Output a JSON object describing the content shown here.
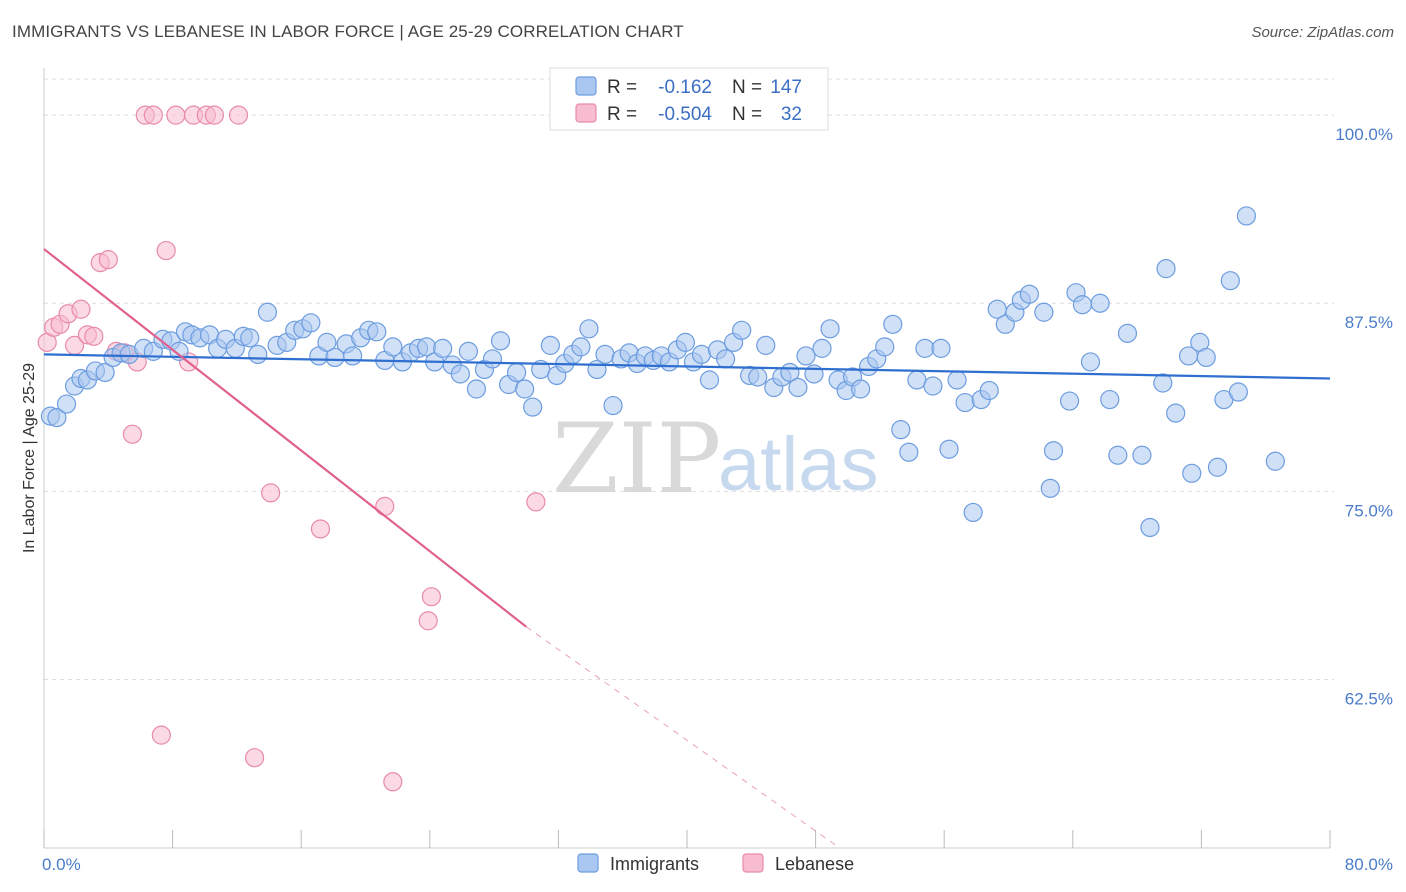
{
  "chart_data": {
    "type": "scatter",
    "title": "IMMIGRANTS VS LEBANESE IN LABOR FORCE | AGE 25-29 CORRELATION CHART",
    "source": "Source: ZipAtlas.com",
    "ylabel": "In Labor Force | Age 25-29",
    "xlabel": "",
    "xlim": [
      0,
      80
    ],
    "ylim": [
      51.3,
      102.8
    ],
    "x_tick_labels": [
      {
        "value": 0,
        "label": "0.0%"
      },
      {
        "value": 80,
        "label": "80.0%"
      }
    ],
    "y_tick_labels": [
      {
        "value": 100,
        "label": "100.0%"
      },
      {
        "value": 87.5,
        "label": "87.5%"
      },
      {
        "value": 75,
        "label": "75.0%"
      },
      {
        "value": 62.5,
        "label": "62.5%"
      }
    ],
    "grid": true,
    "legend_position": "top-center",
    "legend": [
      {
        "name": "Immigrants",
        "r_label": "R =",
        "r_value": "-0.162",
        "n_label": "N =",
        "n_value": "147"
      },
      {
        "name": "Lebanese",
        "r_label": "R =",
        "r_value": "-0.504",
        "n_label": "N =",
        "n_value": "32"
      }
    ],
    "watermark": {
      "part1": "ZIP",
      "part2": "atlas"
    },
    "colors": {
      "immigrants_fill": "#a9c7f0",
      "immigrants_stroke": "#6d9de0",
      "immigrants_line": "#2f6fcf",
      "lebanese_fill": "#f7bcd0",
      "lebanese_stroke": "#e88aaa",
      "lebanese_line": "#e0608f",
      "grid": "#dddddd",
      "axis": "#cccccc"
    },
    "series": [
      {
        "name": "Immigrants",
        "trend": {
          "x0": 0,
          "y0": 84.1,
          "x1": 80,
          "y1": 82.5
        },
        "points": [
          [
            0.4,
            80.0
          ],
          [
            0.8,
            79.9
          ],
          [
            1.4,
            80.8
          ],
          [
            1.9,
            82.0
          ],
          [
            2.3,
            82.5
          ],
          [
            2.7,
            82.4
          ],
          [
            3.2,
            83.0
          ],
          [
            3.8,
            82.9
          ],
          [
            4.3,
            83.9
          ],
          [
            4.8,
            84.2
          ],
          [
            5.3,
            84.1
          ],
          [
            6.2,
            84.5
          ],
          [
            6.8,
            84.3
          ],
          [
            7.4,
            85.1
          ],
          [
            7.9,
            85.0
          ],
          [
            8.4,
            84.3
          ],
          [
            8.8,
            85.6
          ],
          [
            9.2,
            85.4
          ],
          [
            9.7,
            85.2
          ],
          [
            10.3,
            85.4
          ],
          [
            10.8,
            84.5
          ],
          [
            11.3,
            85.1
          ],
          [
            11.9,
            84.5
          ],
          [
            12.4,
            85.3
          ],
          [
            12.8,
            85.2
          ],
          [
            13.3,
            84.1
          ],
          [
            13.9,
            86.9
          ],
          [
            14.5,
            84.7
          ],
          [
            15.1,
            84.9
          ],
          [
            15.6,
            85.7
          ],
          [
            16.1,
            85.8
          ],
          [
            16.6,
            86.2
          ],
          [
            17.1,
            84.0
          ],
          [
            17.6,
            84.9
          ],
          [
            18.1,
            83.9
          ],
          [
            18.8,
            84.8
          ],
          [
            19.2,
            84.0
          ],
          [
            19.7,
            85.2
          ],
          [
            20.2,
            85.7
          ],
          [
            20.7,
            85.6
          ],
          [
            21.2,
            83.7
          ],
          [
            21.7,
            84.6
          ],
          [
            22.3,
            83.6
          ],
          [
            22.8,
            84.2
          ],
          [
            23.3,
            84.5
          ],
          [
            23.8,
            84.6
          ],
          [
            24.3,
            83.6
          ],
          [
            24.8,
            84.5
          ],
          [
            25.4,
            83.4
          ],
          [
            25.9,
            82.8
          ],
          [
            26.4,
            84.3
          ],
          [
            26.9,
            81.8
          ],
          [
            27.4,
            83.1
          ],
          [
            27.9,
            83.8
          ],
          [
            28.4,
            85.0
          ],
          [
            28.9,
            82.1
          ],
          [
            29.4,
            82.9
          ],
          [
            29.9,
            81.8
          ],
          [
            30.4,
            80.6
          ],
          [
            30.9,
            83.1
          ],
          [
            31.5,
            84.7
          ],
          [
            31.9,
            82.7
          ],
          [
            32.4,
            83.5
          ],
          [
            32.9,
            84.1
          ],
          [
            33.4,
            84.6
          ],
          [
            33.9,
            85.8
          ],
          [
            34.4,
            83.1
          ],
          [
            34.9,
            84.1
          ],
          [
            35.4,
            80.7
          ],
          [
            35.9,
            83.8
          ],
          [
            36.4,
            84.2
          ],
          [
            36.9,
            83.5
          ],
          [
            37.4,
            84.0
          ],
          [
            37.9,
            83.7
          ],
          [
            38.4,
            84.0
          ],
          [
            38.9,
            83.6
          ],
          [
            39.4,
            84.4
          ],
          [
            39.9,
            84.9
          ],
          [
            40.4,
            83.6
          ],
          [
            40.9,
            84.1
          ],
          [
            41.4,
            82.4
          ],
          [
            41.9,
            84.4
          ],
          [
            42.4,
            83.8
          ],
          [
            42.9,
            84.9
          ],
          [
            43.4,
            85.7
          ],
          [
            43.9,
            82.7
          ],
          [
            44.4,
            82.6
          ],
          [
            44.9,
            84.7
          ],
          [
            45.4,
            81.9
          ],
          [
            45.9,
            82.6
          ],
          [
            46.4,
            82.9
          ],
          [
            46.9,
            81.9
          ],
          [
            47.4,
            84.0
          ],
          [
            47.9,
            82.8
          ],
          [
            48.4,
            84.5
          ],
          [
            48.9,
            85.8
          ],
          [
            49.4,
            82.4
          ],
          [
            49.9,
            81.7
          ],
          [
            50.3,
            82.6
          ],
          [
            50.8,
            81.8
          ],
          [
            51.3,
            83.3
          ],
          [
            51.8,
            83.8
          ],
          [
            52.3,
            84.6
          ],
          [
            52.8,
            86.1
          ],
          [
            53.3,
            79.1
          ],
          [
            53.8,
            77.6
          ],
          [
            54.3,
            82.4
          ],
          [
            54.8,
            84.5
          ],
          [
            55.3,
            82.0
          ],
          [
            55.8,
            84.5
          ],
          [
            56.3,
            77.8
          ],
          [
            56.8,
            82.4
          ],
          [
            57.3,
            80.9
          ],
          [
            57.8,
            73.6
          ],
          [
            58.3,
            81.1
          ],
          [
            58.8,
            81.7
          ],
          [
            59.3,
            87.1
          ],
          [
            59.8,
            86.1
          ],
          [
            60.4,
            86.9
          ],
          [
            60.8,
            87.7
          ],
          [
            61.3,
            88.1
          ],
          [
            62.2,
            86.9
          ],
          [
            62.8,
            77.7
          ],
          [
            62.6,
            75.2
          ],
          [
            63.8,
            81.0
          ],
          [
            64.2,
            88.2
          ],
          [
            64.6,
            87.4
          ],
          [
            65.1,
            83.6
          ],
          [
            65.7,
            87.5
          ],
          [
            66.3,
            81.1
          ],
          [
            66.8,
            77.4
          ],
          [
            67.4,
            85.5
          ],
          [
            68.3,
            77.4
          ],
          [
            68.8,
            72.6
          ],
          [
            69.6,
            82.2
          ],
          [
            69.8,
            89.8
          ],
          [
            70.4,
            80.2
          ],
          [
            71.2,
            84.0
          ],
          [
            71.4,
            76.2
          ],
          [
            71.9,
            84.9
          ],
          [
            72.3,
            83.9
          ],
          [
            73.0,
            76.6
          ],
          [
            73.4,
            81.1
          ],
          [
            73.8,
            89.0
          ],
          [
            74.3,
            81.6
          ],
          [
            74.8,
            93.3
          ],
          [
            76.6,
            77.0
          ]
        ]
      },
      {
        "name": "Lebanese",
        "trend": {
          "x0": 0,
          "y0": 91.1,
          "x1": 30.0,
          "y1": 66.0,
          "dash_x1": 49.5,
          "dash_y1": 51.3
        },
        "points": [
          [
            0.2,
            84.9
          ],
          [
            0.6,
            85.9
          ],
          [
            1.0,
            86.1
          ],
          [
            1.5,
            86.8
          ],
          [
            1.9,
            84.7
          ],
          [
            2.3,
            87.1
          ],
          [
            2.7,
            85.4
          ],
          [
            3.1,
            85.3
          ],
          [
            3.5,
            90.2
          ],
          [
            4.0,
            90.4
          ],
          [
            4.5,
            84.3
          ],
          [
            5.0,
            84.2
          ],
          [
            5.5,
            78.8
          ],
          [
            5.8,
            83.6
          ],
          [
            6.3,
            100.0
          ],
          [
            6.8,
            100.0
          ],
          [
            7.3,
            58.8
          ],
          [
            7.6,
            91.0
          ],
          [
            8.2,
            100.0
          ],
          [
            9.0,
            83.6
          ],
          [
            9.3,
            100.0
          ],
          [
            10.1,
            100.0
          ],
          [
            10.6,
            100.0
          ],
          [
            12.1,
            100.0
          ],
          [
            13.1,
            57.3
          ],
          [
            14.1,
            74.9
          ],
          [
            17.2,
            72.5
          ],
          [
            21.2,
            74.0
          ],
          [
            21.7,
            55.7
          ],
          [
            24.1,
            68.0
          ],
          [
            23.9,
            66.4
          ],
          [
            30.6,
            74.3
          ]
        ]
      }
    ]
  }
}
